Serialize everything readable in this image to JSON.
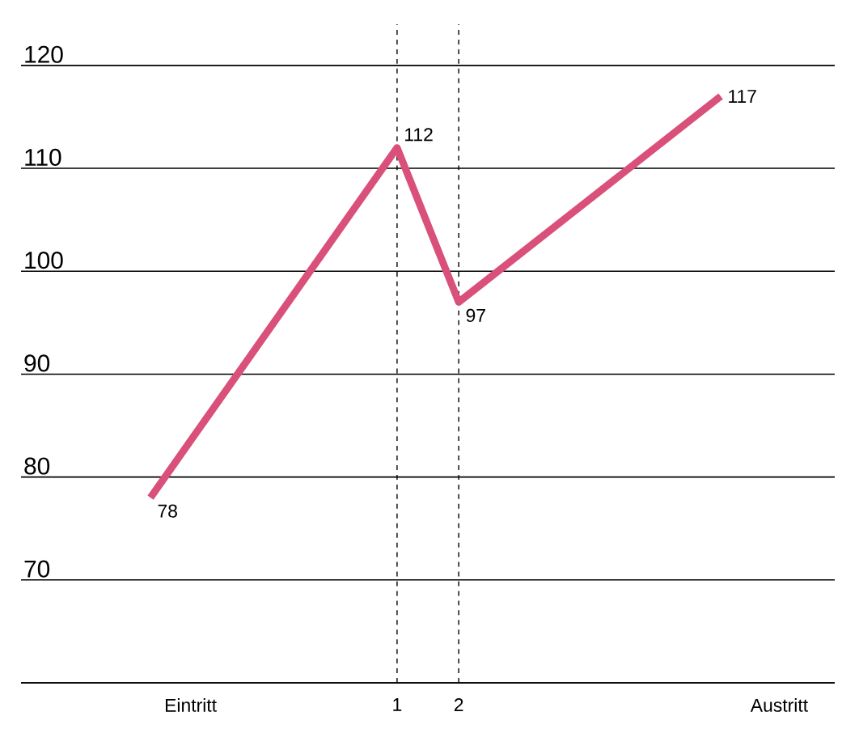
{
  "chart_data": {
    "type": "line",
    "x": [
      -3,
      1,
      2,
      6.25
    ],
    "values": [
      78,
      112,
      97,
      117
    ],
    "color": "#d9507a",
    "xlim": [
      -5.1,
      8.1
    ],
    "ylim": [
      60,
      124
    ],
    "xticks": [
      {
        "value": -2.35,
        "label": "Eintritt"
      },
      1,
      2,
      {
        "value": 7.2,
        "label": "Austritt"
      }
    ],
    "yticks": [
      {
        "value": 60,
        "label": null
      },
      70,
      80,
      90,
      100,
      110,
      120
    ],
    "ref_lines": [
      {
        "axis": "x",
        "value": 1,
        "label": null,
        "color": "#000000",
        "line_style": "dashed"
      },
      {
        "axis": "x",
        "value": 2,
        "label": null,
        "color": "#000000",
        "line_style": "dashed"
      }
    ],
    "grid": "y",
    "data_labels": true,
    "marker": "none",
    "line_style": "solid"
  }
}
